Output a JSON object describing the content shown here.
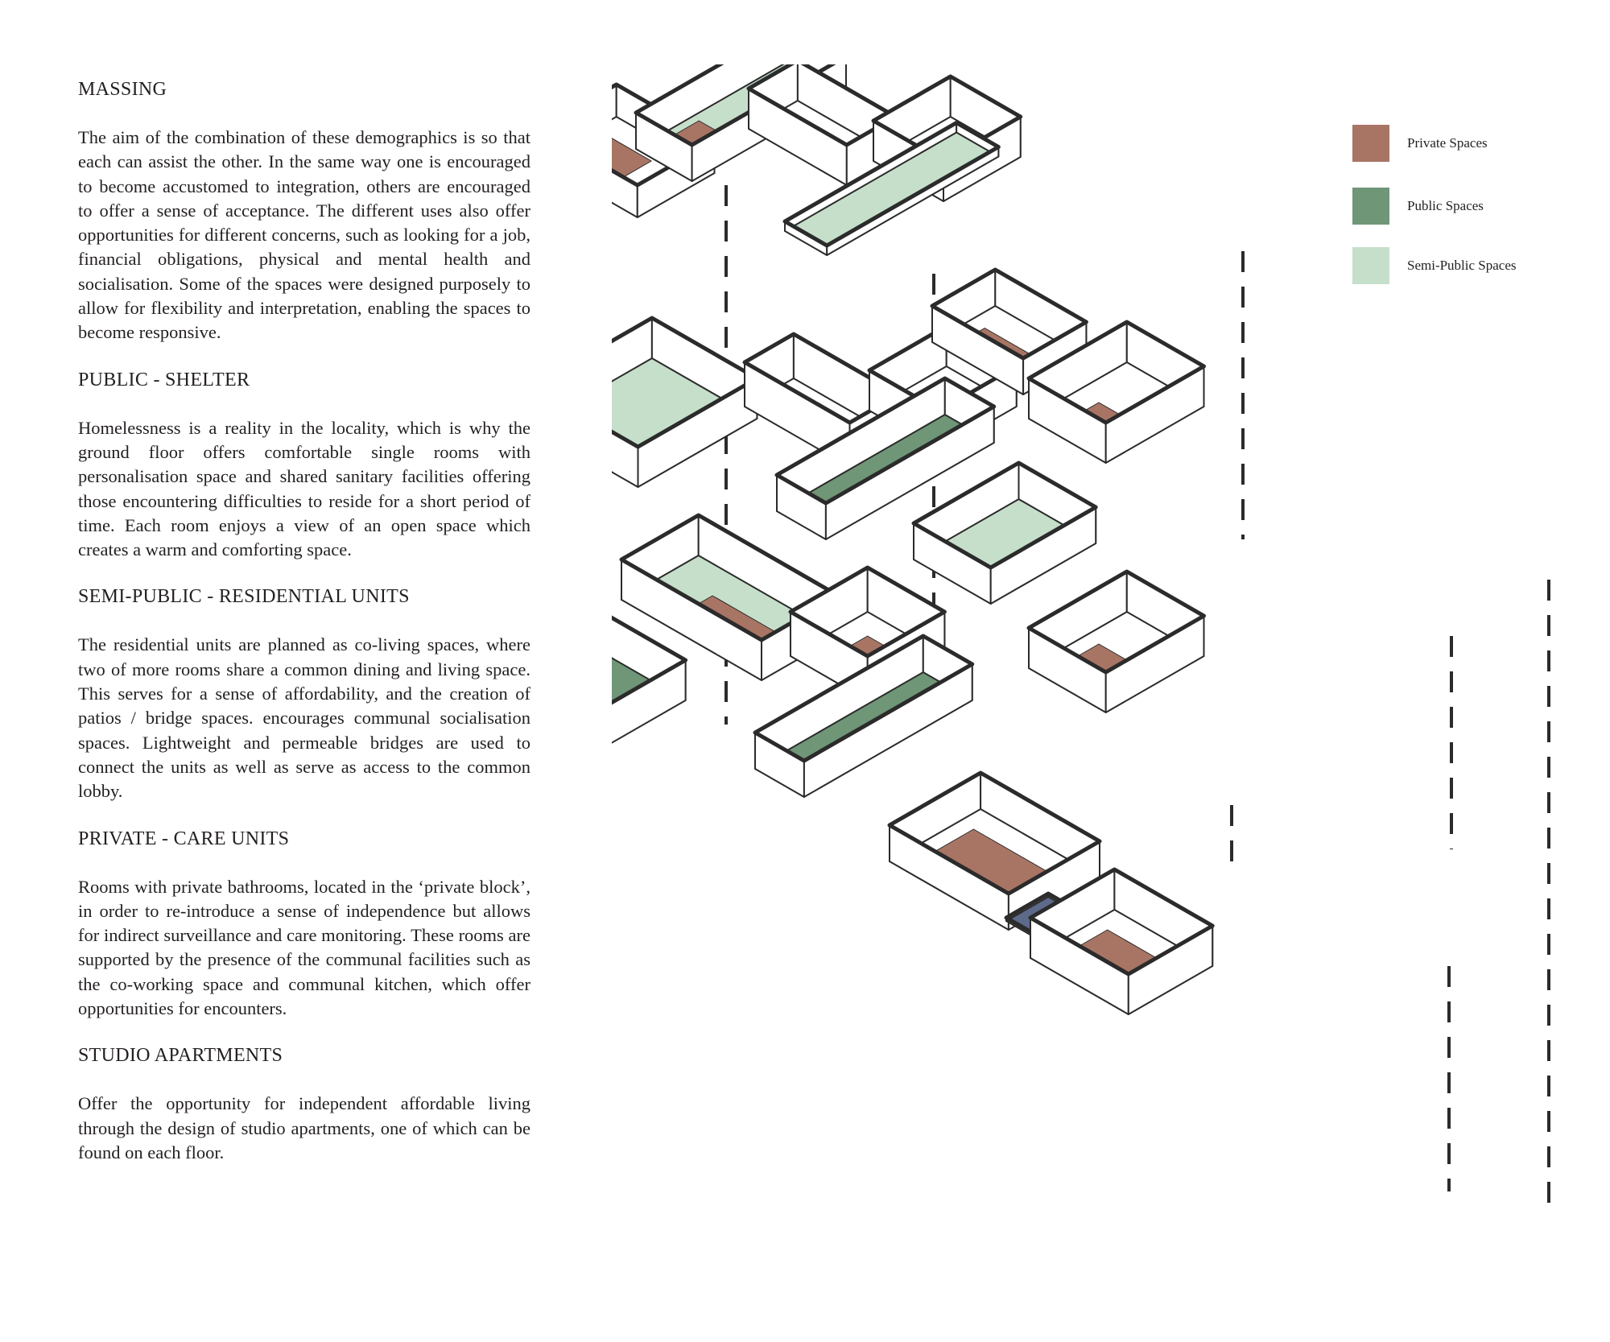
{
  "sections": [
    {
      "heading": "MASSING",
      "body": "The aim of the combination of these demographics is so that each can assist the other. In the same way one is encouraged to become accustomed to integration, others are encouraged to offer a sense of acceptance. The different uses also offer opportunities for different concerns, such as looking for a job, financial obligations, physical and mental health and socialisation. Some of the spaces were designed purposely to allow for flexibility and interpretation, enabling  the spaces to become responsive."
    },
    {
      "heading": "PUBLIC - SHELTER",
      "body": "Homelessness is a reality in the locality, which is why the ground floor offers comfortable single rooms with personalisation space and shared sanitary facilities offering those encountering difficulties to reside for a short period of time. Each room enjoys a view of an open space which creates a warm and comforting space."
    },
    {
      "heading": "SEMI-PUBLIC - RESIDENTIAL UNITS",
      "body": "The residential units are planned as co-living spaces, where two of more rooms share a common dining and living space. This serves for a sense of affordability, and the creation of patios / bridge spaces. encourages communal socialisation spaces. Lightweight and permeable bridges are used to connect the units as well as serve as access to the common lobby."
    },
    {
      "heading": "PRIVATE - CARE UNITS",
      "body": "Rooms with private bathrooms, located in the ‘private block’, in order to re-introduce a sense of independence but allows for indirect surveillance and care monitoring. These rooms are supported by the presence of the communal facilities such as the co-working space and communal kitchen, which offer opportunities for encounters."
    },
    {
      "heading": "STUDIO APARTMENTS",
      "body": "Offer the opportunity for independent affordable living through the design of studio apartments, one of which can be found on each floor."
    }
  ],
  "legend": {
    "private": {
      "label": "Private Spaces",
      "color": "#a87565"
    },
    "public": {
      "label": "Public Spaces",
      "color": "#6f9677"
    },
    "semi_public": {
      "label": "Semi-Public Spaces",
      "color": "#c6dfca"
    }
  },
  "colors": {
    "wall": "#ffffff",
    "outline": "#2b2b2b",
    "circulation": "#5e6a8a"
  }
}
